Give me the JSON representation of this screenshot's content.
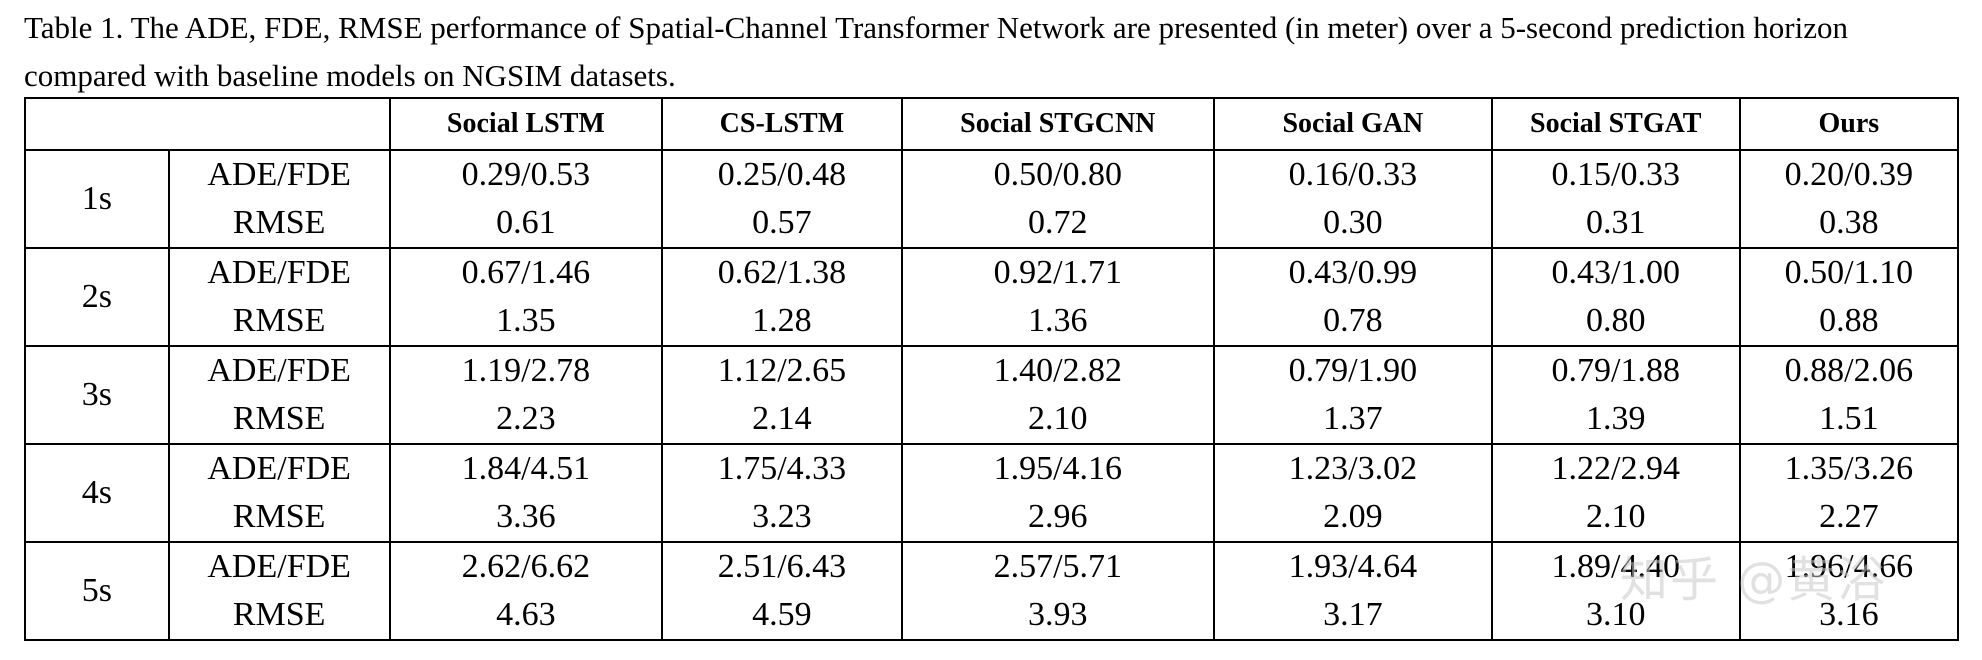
{
  "caption": "Table 1. The ADE, FDE, RMSE performance of Spatial-Channel Transformer Network are presented (in meter) over a 5-second prediction horizon compared with baseline models on NGSIM datasets.",
  "table": {
    "columns": [
      "Social LSTM",
      "CS-LSTM",
      "Social STGCNN",
      "Social GAN",
      "Social STGAT",
      "Ours"
    ],
    "groups": [
      {
        "horizon": "1s",
        "rows": [
          {
            "metric": "ADE/FDE",
            "values": [
              "0.29/0.53",
              "0.25/0.48",
              "0.50/0.80",
              "0.16/0.33",
              "0.15/0.33",
              "0.20/0.39"
            ]
          },
          {
            "metric": "RMSE",
            "values": [
              "0.61",
              "0.57",
              "0.72",
              "0.30",
              "0.31",
              "0.38"
            ]
          }
        ]
      },
      {
        "horizon": "2s",
        "rows": [
          {
            "metric": "ADE/FDE",
            "values": [
              "0.67/1.46",
              "0.62/1.38",
              "0.92/1.71",
              "0.43/0.99",
              "0.43/1.00",
              "0.50/1.10"
            ]
          },
          {
            "metric": "RMSE",
            "values": [
              "1.35",
              "1.28",
              "1.36",
              "0.78",
              "0.80",
              "0.88"
            ]
          }
        ]
      },
      {
        "horizon": "3s",
        "rows": [
          {
            "metric": "ADE/FDE",
            "values": [
              "1.19/2.78",
              "1.12/2.65",
              "1.40/2.82",
              "0.79/1.90",
              "0.79/1.88",
              "0.88/2.06"
            ]
          },
          {
            "metric": "RMSE",
            "values": [
              "2.23",
              "2.14",
              "2.10",
              "1.37",
              "1.39",
              "1.51"
            ]
          }
        ]
      },
      {
        "horizon": "4s",
        "rows": [
          {
            "metric": "ADE/FDE",
            "values": [
              "1.84/4.51",
              "1.75/4.33",
              "1.95/4.16",
              "1.23/3.02",
              "1.22/2.94",
              "1.35/3.26"
            ]
          },
          {
            "metric": "RMSE",
            "values": [
              "3.36",
              "3.23",
              "2.96",
              "2.09",
              "2.10",
              "2.27"
            ]
          }
        ]
      },
      {
        "horizon": "5s",
        "rows": [
          {
            "metric": "ADE/FDE",
            "values": [
              "2.62/6.62",
              "2.51/6.43",
              "2.57/5.71",
              "1.93/4.64",
              "1.89/4.40",
              "1.96/4.66"
            ]
          },
          {
            "metric": "RMSE",
            "values": [
              "4.63",
              "4.59",
              "3.93",
              "3.17",
              "3.10",
              "3.16"
            ]
          }
        ]
      }
    ]
  },
  "watermark": "知乎 @黄浴"
}
